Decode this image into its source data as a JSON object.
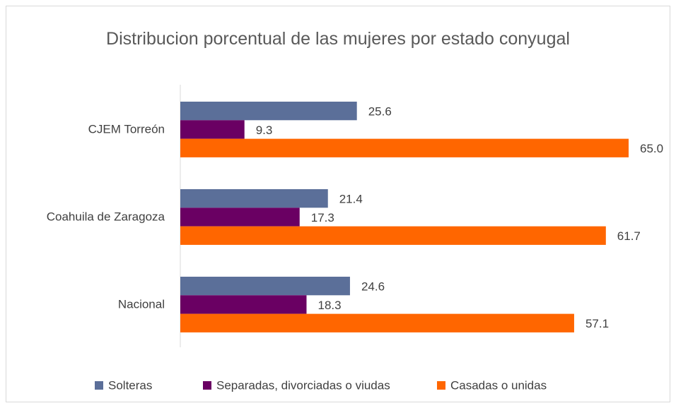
{
  "chart_data": {
    "type": "bar",
    "orientation": "horizontal",
    "title": "Distribucion porcentual de las mujeres por estado conyugal",
    "categories": [
      "CJEM Torreón",
      "Coahuila de Zaragoza",
      "Nacional"
    ],
    "series": [
      {
        "name": "Solteras",
        "color": "#5b6f99",
        "values": [
          25.6,
          21.4,
          24.6
        ],
        "value_labels": [
          "25.6",
          "21.4",
          "24.6"
        ]
      },
      {
        "name": "Separadas, divorciadas o viudas",
        "color": "#6a0063",
        "values": [
          9.3,
          17.3,
          18.3
        ],
        "value_labels": [
          "9.3",
          "17.3",
          "18.3"
        ]
      },
      {
        "name": "Casadas o unidas",
        "color": "#ff6600",
        "values": [
          65,
          61.7,
          57.1
        ],
        "value_labels": [
          "65.0",
          "61.7",
          "57.1"
        ]
      }
    ],
    "legend": "bottom"
  }
}
